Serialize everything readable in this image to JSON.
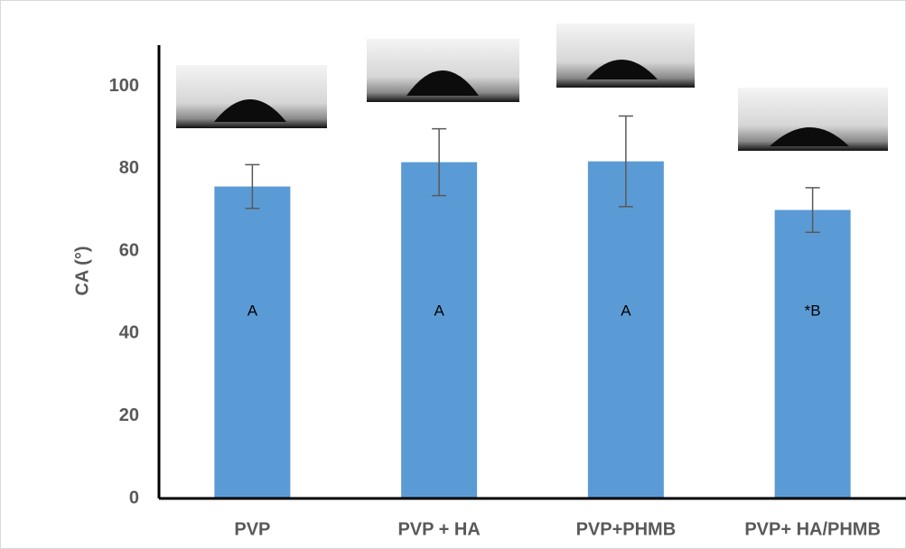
{
  "chart_data": {
    "type": "bar",
    "y_label": "CA (°)",
    "categories": [
      "PVP",
      "PVP + HA",
      "PVP+PHMB",
      "PVP+ HA/PHMB"
    ],
    "values": [
      75.7,
      81.6,
      81.8,
      70.0
    ],
    "errors": [
      5.3,
      8.1,
      11.0,
      5.4
    ],
    "annotations": [
      "A",
      "A",
      "A",
      "*B"
    ],
    "color": "#5b9bd5",
    "error_color": "#595959",
    "ylim": [
      0,
      110
    ],
    "yticks": [
      0,
      20,
      40,
      60,
      80,
      100
    ],
    "grid": false
  }
}
